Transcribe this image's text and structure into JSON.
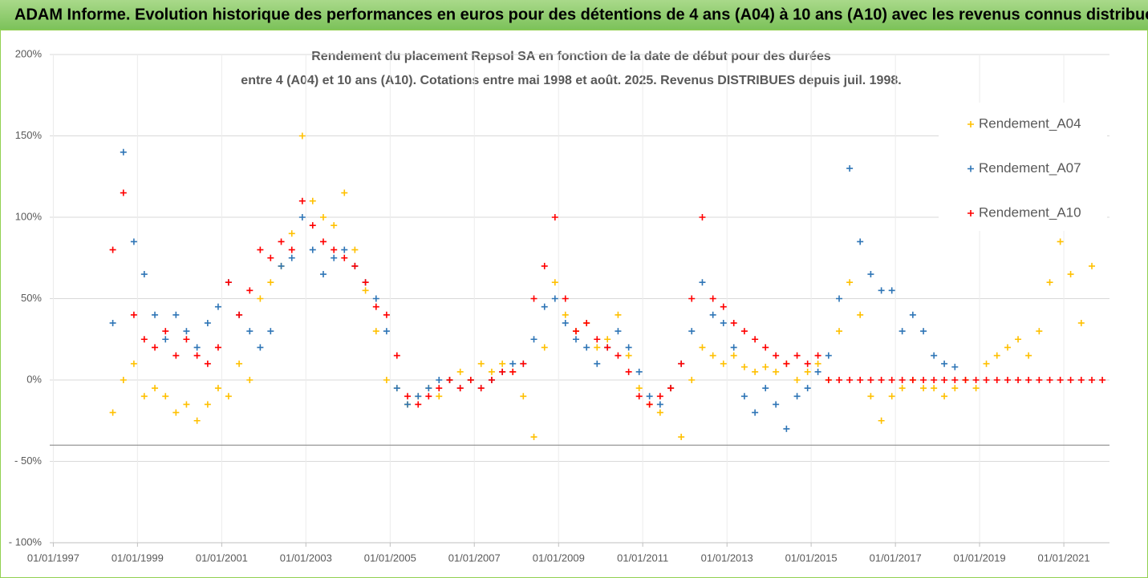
{
  "header": "ADAM Informe. Evolution historique des performances en euros pour des détentions de 4 ans (A04) à 10 ans (A10) avec les revenus connus distribués",
  "chart_data": {
    "type": "scatter",
    "title": [
      "Rendement du placement Repsol SA en fonction de la date de début pour des durées",
      "entre 4 (A04) et 10 ans (A10).  Cotations entre mai 1998 et août. 2025. Revenus DISTRIBUES depuis juil. 1998."
    ],
    "xlim": [
      "1996-12-01",
      "2022-02-01"
    ],
    "xticks": [
      {
        "value": "1997-01-01",
        "label": "01/01/1997"
      },
      {
        "value": "1999-01-01",
        "label": "01/01/1999"
      },
      {
        "value": "2001-01-01",
        "label": "01/01/2001"
      },
      {
        "value": "2003-01-01",
        "label": "01/01/2003"
      },
      {
        "value": "2005-01-01",
        "label": "01/01/2005"
      },
      {
        "value": "2007-01-01",
        "label": "01/01/2007"
      },
      {
        "value": "2009-01-01",
        "label": "01/01/2009"
      },
      {
        "value": "2011-01-01",
        "label": "01/01/2011"
      },
      {
        "value": "2013-01-01",
        "label": "01/01/2013"
      },
      {
        "value": "2015-01-01",
        "label": "01/01/2015"
      },
      {
        "value": "2017-01-01",
        "label": "01/01/2017"
      },
      {
        "value": "2019-01-01",
        "label": "01/01/2019"
      },
      {
        "value": "2021-01-01",
        "label": "01/01/2021"
      }
    ],
    "ylim": [
      -100,
      200
    ],
    "yticks": [
      {
        "value": -100,
        "label": "- 100%"
      },
      {
        "value": -50,
        "label": "- 50%"
      },
      {
        "value": 0,
        "label": "0%"
      },
      {
        "value": 50,
        "label": "50%"
      },
      {
        "value": 100,
        "label": "100%"
      },
      {
        "value": 150,
        "label": "150%"
      },
      {
        "value": 200,
        "label": "200%"
      }
    ],
    "hline": -40,
    "grid": true,
    "legend": "upper right",
    "series": [
      {
        "name": "Rendement_A04",
        "color": "#ffc000",
        "x": [
          "1998-06-01",
          "1998-09-01",
          "1998-12-01",
          "1999-03-01",
          "1999-06-01",
          "1999-09-01",
          "1999-12-01",
          "2000-03-01",
          "2000-06-01",
          "2000-09-01",
          "2000-12-01",
          "2001-03-01",
          "2001-06-01",
          "2001-09-01",
          "2001-12-01",
          "2002-03-01",
          "2002-06-01",
          "2002-09-01",
          "2002-12-01",
          "2003-03-01",
          "2003-06-01",
          "2003-09-01",
          "2003-12-01",
          "2004-03-01",
          "2004-06-01",
          "2004-09-01",
          "2004-12-01",
          "2005-03-01",
          "2005-06-01",
          "2005-09-01",
          "2005-12-01",
          "2006-03-01",
          "2006-06-01",
          "2006-09-01",
          "2006-12-01",
          "2007-03-01",
          "2007-06-01",
          "2007-09-01",
          "2007-12-01",
          "2008-03-01",
          "2008-06-01",
          "2008-09-01",
          "2008-12-01",
          "2009-03-01",
          "2009-06-01",
          "2009-09-01",
          "2009-12-01",
          "2010-03-01",
          "2010-06-01",
          "2010-09-01",
          "2010-12-01",
          "2011-03-01",
          "2011-06-01",
          "2011-09-01",
          "2011-12-01",
          "2012-03-01",
          "2012-06-01",
          "2012-09-01",
          "2012-12-01",
          "2013-03-01",
          "2013-06-01",
          "2013-09-01",
          "2013-12-01",
          "2014-03-01",
          "2014-06-01",
          "2014-09-01",
          "2014-12-01",
          "2015-03-01",
          "2015-06-01",
          "2015-09-01",
          "2015-12-01",
          "2016-03-01",
          "2016-06-01",
          "2016-09-01",
          "2016-12-01",
          "2017-03-01",
          "2017-06-01",
          "2017-09-01",
          "2017-12-01",
          "2018-03-01",
          "2018-06-01",
          "2018-09-01",
          "2018-12-01",
          "2019-03-01",
          "2019-06-01",
          "2019-09-01",
          "2019-12-01",
          "2020-03-01",
          "2020-06-01",
          "2020-09-01",
          "2020-12-01",
          "2021-03-01",
          "2021-06-01",
          "2021-09-01"
        ],
        "values": [
          -20,
          0,
          10,
          -10,
          -5,
          -10,
          -20,
          -15,
          -25,
          -15,
          -5,
          -10,
          10,
          0,
          50,
          60,
          70,
          90,
          150,
          110,
          100,
          95,
          115,
          80,
          55,
          30,
          0,
          -5,
          -15,
          -10,
          -5,
          -10,
          0,
          5,
          0,
          10,
          5,
          10,
          5,
          -10,
          -35,
          20,
          60,
          40,
          30,
          35,
          20,
          25,
          40,
          15,
          -5,
          -15,
          -20,
          -5,
          -35,
          0,
          20,
          15,
          10,
          15,
          8,
          5,
          8,
          5,
          10,
          0,
          5,
          10,
          0,
          30,
          60,
          40,
          -10,
          -25,
          -10,
          -5,
          0,
          -5,
          -5,
          -10,
          -5,
          0,
          -5,
          10,
          15,
          20,
          25,
          15,
          30,
          60,
          85,
          65,
          35,
          70
        ]
      },
      {
        "name": "Rendement_A07",
        "color": "#2e75b6",
        "x": [
          "1998-06-01",
          "1998-09-01",
          "1998-12-01",
          "1999-03-01",
          "1999-06-01",
          "1999-09-01",
          "1999-12-01",
          "2000-03-01",
          "2000-06-01",
          "2000-09-01",
          "2000-12-01",
          "2001-03-01",
          "2001-06-01",
          "2001-09-01",
          "2001-12-01",
          "2002-03-01",
          "2002-06-01",
          "2002-09-01",
          "2002-12-01",
          "2003-03-01",
          "2003-06-01",
          "2003-09-01",
          "2003-12-01",
          "2004-03-01",
          "2004-06-01",
          "2004-09-01",
          "2004-12-01",
          "2005-03-01",
          "2005-06-01",
          "2005-09-01",
          "2005-12-01",
          "2006-03-01",
          "2006-06-01",
          "2006-09-01",
          "2006-12-01",
          "2007-03-01",
          "2007-06-01",
          "2007-09-01",
          "2007-12-01",
          "2008-03-01",
          "2008-06-01",
          "2008-09-01",
          "2008-12-01",
          "2009-03-01",
          "2009-06-01",
          "2009-09-01",
          "2009-12-01",
          "2010-03-01",
          "2010-06-01",
          "2010-09-01",
          "2010-12-01",
          "2011-03-01",
          "2011-06-01",
          "2011-09-01",
          "2011-12-01",
          "2012-03-01",
          "2012-06-01",
          "2012-09-01",
          "2012-12-01",
          "2013-03-01",
          "2013-06-01",
          "2013-09-01",
          "2013-12-01",
          "2014-03-01",
          "2014-06-01",
          "2014-09-01",
          "2014-12-01",
          "2015-03-01",
          "2015-06-01",
          "2015-09-01",
          "2015-12-01",
          "2016-03-01",
          "2016-06-01",
          "2016-09-01",
          "2016-12-01",
          "2017-03-01",
          "2017-06-01",
          "2017-09-01",
          "2017-12-01",
          "2018-03-01",
          "2018-06-01"
        ],
        "values": [
          35,
          140,
          85,
          65,
          40,
          25,
          40,
          30,
          20,
          35,
          45,
          60,
          40,
          30,
          20,
          30,
          70,
          75,
          100,
          80,
          65,
          75,
          80,
          70,
          60,
          50,
          30,
          -5,
          -15,
          -10,
          -5,
          0,
          0,
          -5,
          0,
          -5,
          0,
          5,
          10,
          10,
          25,
          45,
          50,
          35,
          25,
          20,
          10,
          20,
          30,
          20,
          5,
          -10,
          -15,
          -5,
          10,
          30,
          60,
          40,
          35,
          20,
          -10,
          -20,
          -5,
          -15,
          -30,
          -10,
          -5,
          5,
          15,
          50,
          130,
          85,
          65,
          55,
          55,
          30,
          40,
          30,
          15,
          10,
          8
        ]
      },
      {
        "name": "Rendement_A10",
        "color": "#ff0000",
        "x": [
          "1998-06-01",
          "1998-09-01",
          "1998-12-01",
          "1999-03-01",
          "1999-06-01",
          "1999-09-01",
          "1999-12-01",
          "2000-03-01",
          "2000-06-01",
          "2000-09-01",
          "2000-12-01",
          "2001-03-01",
          "2001-06-01",
          "2001-09-01",
          "2001-12-01",
          "2002-03-01",
          "2002-06-01",
          "2002-09-01",
          "2002-12-01",
          "2003-03-01",
          "2003-06-01",
          "2003-09-01",
          "2003-12-01",
          "2004-03-01",
          "2004-06-01",
          "2004-09-01",
          "2004-12-01",
          "2005-03-01",
          "2005-06-01",
          "2005-09-01",
          "2005-12-01",
          "2006-03-01",
          "2006-06-01",
          "2006-09-01",
          "2006-12-01",
          "2007-03-01",
          "2007-06-01",
          "2007-09-01",
          "2007-12-01",
          "2008-03-01",
          "2008-06-01",
          "2008-09-01",
          "2008-12-01",
          "2009-03-01",
          "2009-06-01",
          "2009-09-01",
          "2009-12-01",
          "2010-03-01",
          "2010-06-01",
          "2010-09-01",
          "2010-12-01",
          "2011-03-01",
          "2011-06-01",
          "2011-09-01",
          "2011-12-01",
          "2012-03-01",
          "2012-06-01",
          "2012-09-01",
          "2012-12-01",
          "2013-03-01",
          "2013-06-01",
          "2013-09-01",
          "2013-12-01",
          "2014-03-01",
          "2014-06-01",
          "2014-09-01",
          "2014-12-01",
          "2015-03-01",
          "2015-06-01",
          "2015-09-01",
          "2015-12-01",
          "2016-03-01",
          "2016-06-01",
          "2016-09-01",
          "2016-12-01",
          "2017-03-01",
          "2017-06-01",
          "2017-09-01",
          "2017-12-01",
          "2018-03-01",
          "2018-06-01",
          "2018-09-01",
          "2018-12-01",
          "2019-03-01",
          "2019-06-01",
          "2019-09-01",
          "2019-12-01",
          "2020-03-01",
          "2020-06-01",
          "2020-09-01",
          "2020-12-01",
          "2021-03-01",
          "2021-06-01",
          "2021-09-01",
          "2021-12-01"
        ],
        "values": [
          80,
          115,
          40,
          25,
          20,
          30,
          15,
          25,
          15,
          10,
          20,
          60,
          40,
          55,
          80,
          75,
          85,
          80,
          110,
          95,
          85,
          80,
          75,
          70,
          60,
          45,
          40,
          15,
          -10,
          -15,
          -10,
          -5,
          0,
          -5,
          0,
          -5,
          0,
          5,
          5,
          10,
          50,
          70,
          100,
          50,
          30,
          35,
          25,
          20,
          15,
          5,
          -10,
          -15,
          -10,
          -5,
          10,
          50,
          100,
          50,
          45,
          35,
          30,
          25,
          20,
          15,
          10,
          15,
          10,
          15,
          0,
          0,
          0,
          0,
          0,
          0,
          0,
          0,
          0,
          0,
          0,
          0,
          0,
          0,
          0,
          0,
          0,
          0,
          0,
          0,
          0,
          0,
          0,
          0,
          0,
          0,
          0
        ]
      }
    ]
  }
}
